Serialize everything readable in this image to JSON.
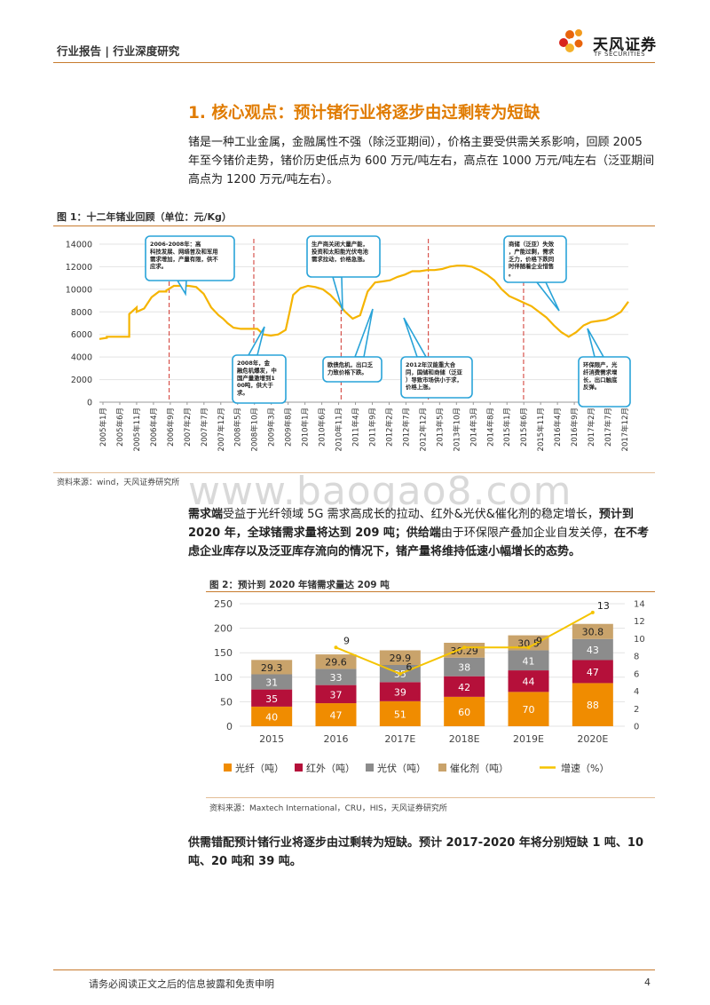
{
  "header": {
    "left": "行业报告 | 行业深度研究",
    "logo_cn": "天风证券",
    "logo_en": "TF SECURITIES"
  },
  "section_title": "1. 核心观点：预计锗行业将逐步由过剩转为短缺",
  "para1": "锗是一种工业金属，金融属性不强（除泛亚期间），价格主要受供需关系影响，回顾 2005 年至今锗价走势，锗价历史低点为 600 万元/吨左右，高点在 1000 万元/吨左右（泛亚期间高点为 1200 万元/吨左右）。",
  "figure1": {
    "title": "图 1：十二年锗业回顾（单位：元/Kg）",
    "source": "资料来源：wind，天风证券研究所"
  },
  "watermark": "www.baogao8.com",
  "para2": {
    "s1": "需求端",
    "s2": "受益于光纤领域 5G 需求高成长的拉动、红外&光伏&催化剂的稳定增长，",
    "s3": "预计到 2020 年，全球锗需求量将达到 209 吨；",
    "s4": "供给端",
    "s5": "由于环保限产叠加企业自发关停，",
    "s6": "在不考虑企业库存以及泛亚库存流向的情况下，锗产量将维持低速小幅增长的态势。"
  },
  "figure2": {
    "title": "图 2：预计到 2020 年锗需求量达 209 吨",
    "source": "资料来源：Maxtech International，CRU，HIS，天风证券研究所"
  },
  "para3": "供需错配预计锗行业将逐步由过剩转为短缺。预计 2017-2020 年将分别短缺 1 吨、10 吨、20 吨和 39 吨。",
  "footer": {
    "text": "请务必阅读正文之后的信息披露和免责申明",
    "page": "4"
  },
  "chart_data": [
    {
      "type": "line",
      "ylim": [
        0,
        14000
      ],
      "yticks": [
        0,
        2000,
        4000,
        6000,
        8000,
        10000,
        12000,
        14000
      ],
      "xticks": [
        "2005年1月",
        "2005年6月",
        "2005年11月",
        "2006年4月",
        "2006年9月",
        "2007年2月",
        "2007年7月",
        "2007年12月",
        "2008年5月",
        "2008年10月",
        "2009年3月",
        "2009年8月",
        "2010年1月",
        "2010年6月",
        "2010年11月",
        "2011年4月",
        "2011年9月",
        "2012年2月",
        "2012年7月",
        "2012年12月",
        "2013年5月",
        "2013年10月",
        "2014年3月",
        "2014年8月",
        "2015年1月",
        "2015年6月",
        "2015年11月",
        "2016年4月",
        "2016年9月",
        "2017年2月",
        "2017年7月",
        "2017年12月"
      ],
      "x": [
        0,
        5,
        5,
        10,
        15,
        15,
        19,
        20,
        20,
        25,
        25,
        30,
        35,
        40,
        40,
        45,
        45,
        50,
        55,
        60,
        65,
        70,
        75,
        80,
        83,
        86,
        88,
        90,
        95,
        100,
        103,
        106,
        110,
        115,
        120,
        125,
        128,
        130,
        135,
        140,
        145,
        150,
        155,
        160,
        165,
        170,
        175,
        180,
        185,
        190,
        195,
        200,
        205,
        210,
        215,
        220,
        225,
        230,
        235,
        240,
        245,
        250,
        255,
        260,
        265,
        270,
        275,
        280,
        285,
        290,
        295,
        300,
        305,
        310,
        315,
        320,
        325,
        330,
        335,
        340,
        345,
        350,
        355
      ],
      "values": [
        5600,
        5700,
        5800,
        5800,
        5800,
        5800,
        5800,
        5800,
        7800,
        8400,
        8000,
        8300,
        9300,
        9800,
        9800,
        9800,
        9900,
        10300,
        10300,
        10300,
        10200,
        9600,
        8400,
        7700,
        7400,
        7000,
        6800,
        6600,
        6500,
        6500,
        6500,
        6500,
        6000,
        5900,
        6000,
        6400,
        8200,
        9500,
        10100,
        10300,
        10200,
        10000,
        9500,
        8800,
        8000,
        7400,
        7700,
        9800,
        10600,
        10700,
        10800,
        11100,
        11300,
        11600,
        11600,
        11700,
        11700,
        11800,
        12000,
        12100,
        12100,
        12000,
        11700,
        11300,
        10800,
        10000,
        9400,
        9100,
        8800,
        8500,
        8000,
        7500,
        6800,
        6200,
        5800,
        6200,
        6800,
        7100,
        7200,
        7300,
        7600,
        8000,
        8900
      ],
      "callouts": [
        "2006-2008年：高科技发展、网络普及和军用需求增加，产量有限，供不应求。",
        "2008年，金融危机爆发，中国产量激增到100吨，供大于求。",
        "生产商关闭大量产能，投资和太阳能光伏电池需求拉动，价格急涨。",
        "欧债危机，出口乏力致价格下跌。",
        "2012年汉能重大合同，国储和商储（泛亚）导致市场供小于求，价格上涨。",
        "商储（泛亚）失效，产能过剩，需求乏力，价格下跌同时伴随着企业惜售。",
        "环保限产，光纤消费需求增长，出口触底反弹。"
      ]
    },
    {
      "type": "bar",
      "categories": [
        "2015",
        "2016",
        "2017E",
        "2018E",
        "2019E",
        "2020E"
      ],
      "series": [
        {
          "name": "光纤（吨）",
          "color": "#f08c00",
          "values": [
            40,
            47,
            51,
            60,
            70,
            88
          ]
        },
        {
          "name": "红外（吨）",
          "color": "#b5103a",
          "values": [
            35,
            37,
            39,
            42,
            44,
            47
          ]
        },
        {
          "name": "光伏（吨）",
          "color": "#8c8c8c",
          "values": [
            31,
            33,
            35,
            38,
            41,
            43
          ]
        },
        {
          "name": "催化剂（吨）",
          "color": "#c9a36b",
          "values": [
            29.3,
            29.6,
            29.9,
            30.29,
            30.5,
            30.8
          ]
        }
      ],
      "data_labels": [
        [
          "40",
          "35",
          "31",
          "29.3"
        ],
        [
          "47",
          "37",
          "33",
          "29.6"
        ],
        [
          "51",
          "39",
          "35",
          "29.9"
        ],
        [
          "60",
          "42",
          "38",
          "30.29"
        ],
        [
          "70",
          "44",
          "41",
          "30.5"
        ],
        [
          "88",
          "47",
          "43",
          "30.8"
        ]
      ],
      "line": {
        "name": "增速（%）",
        "color": "#f5c400",
        "values": [
          null,
          9,
          6,
          9,
          9,
          13
        ],
        "labels": [
          "",
          "9",
          "6",
          "",
          "9",
          "13"
        ]
      },
      "ylim": [
        0,
        250
      ],
      "yticks": [
        0,
        50,
        100,
        150,
        200,
        250
      ],
      "y2lim": [
        0,
        14
      ],
      "y2ticks": [
        0,
        2,
        4,
        6,
        8,
        10,
        12,
        14
      ]
    }
  ]
}
